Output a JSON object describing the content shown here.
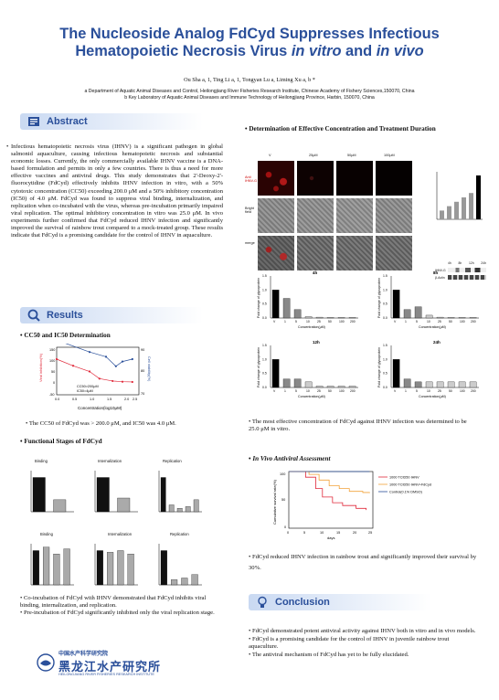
{
  "title": {
    "line1": "The Nucleoside Analog FdCyd Suppresses Infectious",
    "line2_a": "Hematopoietic Necrosis Virus ",
    "line2_b": "in vitro",
    "line2_c": " and ",
    "line2_d": "in vivo"
  },
  "authors": "Ou Sha a, 1, Ting Li a, 1, Tongyan Lu a, Liming Xu a, b *",
  "affiliations": {
    "a": "a Department of Aquatic Animal Diseases and Control, Heilongjiang River Fisheries Research Institute, Chinese Academy of Fishery Sciences,150070, China",
    "b": "b Key Laboratory of Aquatic Animal Diseases and Immune Technology of Heilongjiang Province, Harbin, 150070, China"
  },
  "sections": {
    "abstract": "Abstract",
    "results": "Results",
    "conclusion": "Conclusion"
  },
  "abstract_text": "Infectious hematopoietic necrosis virus (IHNV) is a significant pathogen in global salmonid aquaculture, causing infectious hematopoietic necrosis and substantial economic losses. Currently, the only commercially available IHNV vaccine is a DNA-based formulation and permits in only a few countries. There is thus a need for more effective vaccines and antiviral drugs. This study demonstrates that 2'-Deoxy-2'-fluorocytidine (FdCyd) effectively inhibits IHNV infection in vitro, with a 50% cytotoxic concentration (CC50) exceeding 200.0 μM and a 50% inhibitory concentration (IC50) of 4.0 μM. FdCyd was found to suppress viral binding, internalization, and replication when co-incubated with the virus, whereas pre-incubation primarily impaired viral replication. The optimal inhibitory concentration in vitro was 25.0 μM. In vivo experiments further confirmed that FdCyd reduced IHNV infection and significantly improved the survival of rainbow trout compared to a mock-treated group. These results indicate that FdCyd is a promising candidate for the control of IHNV in aquaculture.",
  "cc50": {
    "heading": "CC50 and IC50 Determination",
    "note": "The CC50 of FdCyd was > 200.0 μM, and IC50 was 4.0 μM.",
    "legend_a": "CC50>200μM",
    "legend_b": "IC50=4μM",
    "xlabel": "Concentration(log10μM)",
    "ylabel_left": "Viral inhibition(%)",
    "ylabel_right": "Cell viability(%)"
  },
  "functional": {
    "heading": "Functional Stages of FdCyd",
    "titles_top": [
      "Binding",
      "Internalization",
      "Replication"
    ],
    "titles_bottom": [
      "Binding",
      "Internalization",
      "Replication"
    ],
    "bullets": [
      "Co-incubation of FdCyd with IHNV demonstrated that FdCyd inhibits viral binding, internalization, and replication.",
      "Pre-incubation of FdCyd significantly inhibited only the viral replication stage."
    ]
  },
  "determination": {
    "heading": "Determination of Effective Concentration and Treatment Duration",
    "col_labels": [
      "V",
      "25μM",
      "50μM",
      "100μM"
    ],
    "row_labels": [
      "Anti IHNV-G",
      "Bright field",
      "merge"
    ],
    "time_titles": [
      "4h",
      "8h",
      "12h",
      "24h"
    ],
    "xlabel": "Concentration(μM)",
    "ylabel": "Fold change of glycoprotein",
    "ticks": [
      "V",
      "1",
      "5",
      "10",
      "25",
      "50",
      "100",
      "200"
    ],
    "wb_labels": [
      "IHNV-G",
      "β-Actin"
    ],
    "wb_times": [
      "4h",
      "8h",
      "12h",
      "24h"
    ],
    "note": "The most effective concentration of FdCyd against IHNV infection was determined to be 25.0 μM in vitro."
  },
  "invivo": {
    "heading": "In Vivo Antiviral Assessment",
    "legend": [
      "1000 TCID50 IHNV",
      "1000 TCID50 IHNV+FdCyd",
      "Control(0.1% DMSO)"
    ],
    "xlabel": "days",
    "ylabel": "Cumulative survival rate(%)",
    "note": "FdCyd reduced IHNV infection in rainbow trout and significantly improved their survival by 30%."
  },
  "conclusion_bullets": [
    "FdCyd demonstrated potent antiviral activity against IHNV both in vitro and in vivo models.",
    "FdCyd is a promising candidate for the control of IHNV in juvenile rainbow trout aquaculture.",
    "The antiviral mechanism of FdCyd has yet to be fully elucidated."
  ],
  "institute": {
    "cn_small": "中国水产科学研究院",
    "cn_big": "黑龙江水产研究所",
    "en": "HEILONGJIANG RIVER FISHERIES RESEARCH INSTITUTE"
  },
  "chart_data": [
    {
      "type": "line",
      "title": "",
      "xlabel": "Concentration(log10μM)",
      "ylabel": "Viral inhibition(%)",
      "series": [
        {
          "name": "",
          "x": [
            0.0,
            0.5,
            1.0,
            1.3,
            1.7,
            2.0,
            2.3
          ],
          "y": [
            100,
            72,
            48,
            18,
            8,
            5,
            4
          ]
        },
        {
          "name": "",
          "x": [
            0.0,
            1.0,
            1.5,
            1.8,
            2.0,
            2.3
          ],
          "y": [
            93,
            88,
            86,
            82,
            84,
            85
          ]
        }
      ]
    },
    {
      "type": "bar",
      "title": "4h",
      "categories": [
        "V",
        "1",
        "5",
        "10",
        "25",
        "50",
        "100",
        "200"
      ],
      "values": [
        1.0,
        0.7,
        0.3,
        0.05,
        0.03,
        0.02,
        0.02,
        0.02
      ]
    },
    {
      "type": "bar",
      "title": "8h",
      "categories": [
        "V",
        "1",
        "5",
        "10",
        "25",
        "50",
        "100",
        "200"
      ],
      "values": [
        1.0,
        0.3,
        0.4,
        0.1,
        0.03,
        0.02,
        0.02,
        0.02
      ]
    },
    {
      "type": "bar",
      "title": "12h",
      "categories": [
        "V",
        "1",
        "5",
        "10",
        "25",
        "50",
        "100",
        "200"
      ],
      "values": [
        1.0,
        0.3,
        0.3,
        0.2,
        0.05,
        0.05,
        0.05,
        0.05
      ]
    },
    {
      "type": "bar",
      "title": "24h",
      "categories": [
        "V",
        "1",
        "5",
        "10",
        "25",
        "50",
        "100",
        "200"
      ],
      "values": [
        1.0,
        0.3,
        0.2,
        0.2,
        0.2,
        0.2,
        0.2,
        0.2
      ]
    },
    {
      "type": "line",
      "title": "",
      "xlabel": "days",
      "ylabel": "Cumulative survival rate(%)",
      "series": [
        {
          "name": "1000 TCID50 IHNV",
          "x": [
            0,
            5,
            8,
            10,
            13,
            16,
            20,
            23
          ],
          "y": [
            100,
            90,
            70,
            55,
            45,
            40,
            35,
            32
          ]
        },
        {
          "name": "1000 TCID50 IHNV+FdCyd",
          "x": [
            0,
            6,
            9,
            12,
            15,
            18,
            22,
            24
          ],
          "y": [
            100,
            95,
            85,
            75,
            70,
            65,
            63,
            62
          ]
        },
        {
          "name": "Control(0.1% DMSO)",
          "x": [
            0,
            24
          ],
          "y": [
            100,
            100
          ]
        }
      ]
    }
  ]
}
